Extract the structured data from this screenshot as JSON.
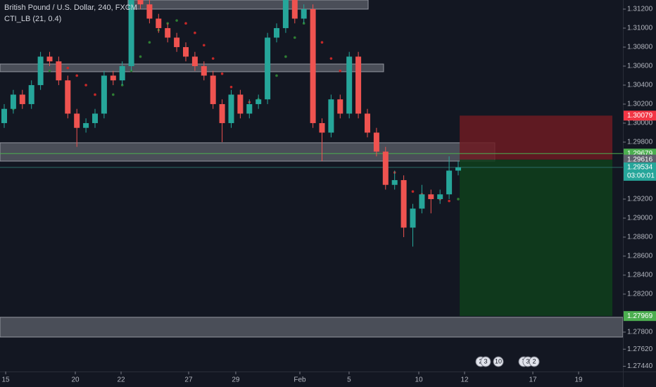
{
  "chart_data": {
    "type": "candlestick",
    "title": "British Pound / U.S. Dollar, 240, FXCM",
    "indicator_label": "CTI_LB (21, 0.4)",
    "up_color": "#26a69a",
    "down_color": "#ef5350",
    "x": [
      0,
      1,
      2,
      3,
      4,
      5,
      6,
      7,
      8,
      9,
      10,
      11,
      12,
      13,
      14,
      15,
      16,
      17,
      18,
      19,
      20,
      21,
      22,
      23,
      24,
      25,
      26,
      27,
      28,
      29,
      30,
      31,
      32,
      33,
      34,
      35,
      36,
      37,
      38,
      39,
      40,
      41,
      42,
      43,
      44,
      45,
      46,
      47,
      48,
      49,
      50
    ],
    "open": [
      1.3,
      1.3015,
      1.303,
      1.302,
      1.304,
      1.307,
      1.3065,
      1.3045,
      1.301,
      1.2995,
      1.3,
      1.301,
      1.305,
      1.3045,
      1.306,
      1.313,
      1.3125,
      1.311,
      1.31,
      1.309,
      1.308,
      1.307,
      1.306,
      1.305,
      1.302,
      1.3,
      1.303,
      1.301,
      1.302,
      1.3025,
      1.309,
      1.31,
      1.313,
      1.311,
      1.312,
      1.3,
      1.299,
      1.3025,
      1.301,
      1.307,
      1.301,
      1.299,
      1.297,
      1.2935,
      1.294,
      1.289,
      1.291,
      1.2925,
      1.292,
      1.2925,
      1.295
    ],
    "high": [
      1.302,
      1.3035,
      1.3035,
      1.3045,
      1.3075,
      1.3075,
      1.307,
      1.305,
      1.3015,
      1.3005,
      1.3015,
      1.3055,
      1.3055,
      1.3065,
      1.3135,
      1.3135,
      1.313,
      1.3115,
      1.3105,
      1.3095,
      1.3085,
      1.3075,
      1.3065,
      1.3055,
      1.3025,
      1.3035,
      1.3035,
      1.3025,
      1.303,
      1.3095,
      1.3105,
      1.3135,
      1.3135,
      1.3125,
      1.3125,
      1.3005,
      1.303,
      1.303,
      1.3075,
      1.3075,
      1.3015,
      1.2995,
      1.2975,
      1.295,
      1.2945,
      1.2915,
      1.2935,
      1.293,
      1.293,
      1.2965,
      1.296
    ],
    "low": [
      1.2995,
      1.301,
      1.3015,
      1.3015,
      1.3035,
      1.306,
      1.304,
      1.3005,
      1.2975,
      1.299,
      1.2995,
      1.3005,
      1.304,
      1.304,
      1.3055,
      1.312,
      1.3105,
      1.3095,
      1.3085,
      1.3075,
      1.3065,
      1.3055,
      1.3045,
      1.3015,
      1.298,
      1.2995,
      1.3005,
      1.3005,
      1.3015,
      1.302,
      1.3085,
      1.3095,
      1.3105,
      1.3105,
      1.2995,
      1.296,
      1.2985,
      1.3005,
      1.3005,
      1.3005,
      1.2985,
      1.2965,
      1.293,
      1.293,
      1.288,
      1.287,
      1.2905,
      1.2905,
      1.2915,
      1.292,
      1.2945
    ],
    "close": [
      1.3015,
      1.303,
      1.302,
      1.304,
      1.307,
      1.3065,
      1.3045,
      1.301,
      1.2995,
      1.3,
      1.301,
      1.305,
      1.3045,
      1.306,
      1.313,
      1.3125,
      1.311,
      1.31,
      1.309,
      1.308,
      1.307,
      1.306,
      1.305,
      1.302,
      1.3,
      1.303,
      1.301,
      1.302,
      1.3025,
      1.309,
      1.31,
      1.313,
      1.311,
      1.312,
      1.3,
      1.299,
      1.3025,
      1.301,
      1.307,
      1.301,
      1.299,
      1.297,
      1.2935,
      1.294,
      1.289,
      1.291,
      1.2925,
      1.292,
      1.2925,
      1.295,
      1.29534
    ],
    "indicator": {
      "up_color": "#2e7d32",
      "down_color": "#c62828",
      "values": [
        1.301,
        1.3015,
        1.3025,
        1.3035,
        1.3045,
        1.3055,
        1.306,
        1.3058,
        1.305,
        1.304,
        1.303,
        1.3025,
        1.303,
        1.304,
        1.3055,
        1.307,
        1.3085,
        1.3098,
        1.3105,
        1.3108,
        1.3105,
        1.3095,
        1.3082,
        1.3068,
        1.3052,
        1.3038,
        1.3028,
        1.3022,
        1.3025,
        1.3035,
        1.305,
        1.307,
        1.309,
        1.3105,
        1.31,
        1.3085,
        1.3068,
        1.3055,
        1.304,
        1.3025,
        1.3005,
        1.2985,
        1.2965,
        1.2948,
        1.2935,
        1.2928,
        1.2925,
        1.2922,
        1.292,
        1.2918,
        1.292
      ]
    },
    "xlim": [
      -0.465,
      68.14
    ],
    "ylim": [
      1.27385,
      1.31296
    ],
    "xticks": [
      {
        "value": 0.16,
        "label": "15"
      },
      {
        "value": 7.83,
        "label": "20"
      },
      {
        "value": 12.87,
        "label": "22"
      },
      {
        "value": 20.31,
        "label": "27"
      },
      {
        "value": 25.5,
        "label": "29"
      },
      {
        "value": 32.56,
        "label": "Feb"
      },
      {
        "value": 37.98,
        "label": "5"
      },
      {
        "value": 45.66,
        "label": "10"
      },
      {
        "value": 50.7,
        "label": "12"
      },
      {
        "value": 58.22,
        "label": "17"
      },
      {
        "value": 63.26,
        "label": "19"
      }
    ],
    "yticks": [
      {
        "value": 1.312,
        "label": "1.31200"
      },
      {
        "value": 1.31,
        "label": "1.31000"
      },
      {
        "value": 1.308,
        "label": "1.30800"
      },
      {
        "value": 1.306,
        "label": "1.30600"
      },
      {
        "value": 1.304,
        "label": "1.30400"
      },
      {
        "value": 1.302,
        "label": "1.30200"
      },
      {
        "value": 1.3,
        "label": "1.30000"
      },
      {
        "value": 1.298,
        "label": "1.29800"
      },
      {
        "value": 1.292,
        "label": "1.29200"
      },
      {
        "value": 1.29,
        "label": "1.29000"
      },
      {
        "value": 1.288,
        "label": "1.28800"
      },
      {
        "value": 1.286,
        "label": "1.28600"
      },
      {
        "value": 1.284,
        "label": "1.28400"
      },
      {
        "value": 1.282,
        "label": "1.28200"
      },
      {
        "value": 1.278,
        "label": "1.27800"
      },
      {
        "value": 1.2762,
        "label": "1.27620"
      },
      {
        "value": 1.2744,
        "label": "1.27440"
      }
    ],
    "zones": [
      {
        "x": [
          13.64,
          40.08
        ],
        "y": [
          1.312,
          1.31296
        ]
      },
      {
        "x": [
          -0.465,
          41.78
        ],
        "y": [
          1.30541,
          1.30622
        ]
      },
      {
        "x": [
          -0.465,
          54.03
        ],
        "y": [
          1.296,
          1.29793
        ]
      },
      {
        "x": [
          -0.465,
          68.14
        ],
        "y": [
          1.27748,
          1.27956
        ]
      }
    ],
    "position": {
      "x": [
        50.16,
        66.98
      ],
      "entry": 1.29616,
      "stop": 1.30079,
      "target": 1.27969,
      "stop_color": "#6d1b22",
      "target_color": "#0f3d1c"
    },
    "lines": [
      {
        "value": 1.29679,
        "color": "#4caf50"
      },
      {
        "value": 1.29534,
        "color": "#2a6b66"
      }
    ],
    "price_labels": [
      {
        "value": 1.30079,
        "color": "#f23645"
      },
      {
        "value": 1.29679,
        "color": "#4caf50"
      },
      {
        "value": 1.29616,
        "color": "#5d606b"
      },
      {
        "value": 1.29534,
        "color": "#26a69a",
        "sub": "03:00:01"
      },
      {
        "value": 1.27969,
        "color": "#4caf50"
      }
    ],
    "events": [
      {
        "x": 52.48,
        "label": "2"
      },
      {
        "x": 53.02,
        "label": "3"
      },
      {
        "x": 54.42,
        "label": "10"
      },
      {
        "x": 57.21,
        "label": "7"
      },
      {
        "x": 57.67,
        "label": "3"
      },
      {
        "x": 58.37,
        "label": "2"
      }
    ]
  }
}
